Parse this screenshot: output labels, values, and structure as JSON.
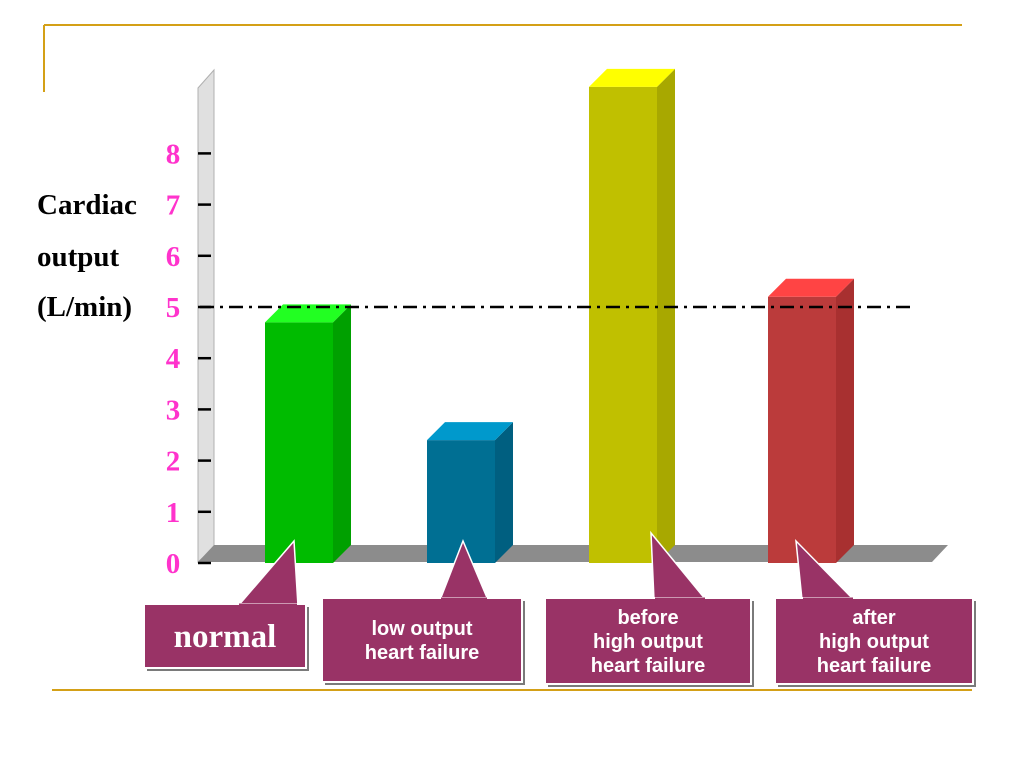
{
  "colors": {
    "accent_rule": "#d4a017",
    "tick_label": "#ff33cc",
    "callout_fill": "#993366",
    "floor": "#8c8c8c",
    "wall": "#e0e0e0",
    "reference_line": "#000000"
  },
  "chart_data": {
    "type": "bar",
    "title": "",
    "ylabel_lines": [
      "Cardiac",
      "output",
      "(L/min)"
    ],
    "yticks": [
      0,
      1,
      2,
      3,
      4,
      5,
      6,
      7,
      8
    ],
    "ylim": [
      0,
      9
    ],
    "grid": false,
    "reference_line": {
      "y": 5,
      "style": "dash-dot"
    },
    "categories": [
      "normal",
      "low output heart failure",
      "before high output heart failure",
      "after high output heart failure"
    ],
    "values": [
      4.7,
      2.4,
      9.3,
      5.2
    ],
    "bar_colors": [
      {
        "front": "#00bb00",
        "side": "#00a000",
        "top": "#22ff22"
      },
      {
        "front": "#006f93",
        "side": "#005f80",
        "top": "#0099cc"
      },
      {
        "front": "#c0c000",
        "side": "#a8a800",
        "top": "#ffff00"
      },
      {
        "front": "#bb3b3b",
        "side": "#a83030",
        "top": "#ff4444"
      }
    ],
    "callouts": [
      {
        "lines": [
          "normal"
        ],
        "style": "serif-large"
      },
      {
        "lines": [
          "low output",
          "heart failure"
        ],
        "style": "sans"
      },
      {
        "lines": [
          "before",
          "high output",
          "heart failure"
        ],
        "style": "sans"
      },
      {
        "lines": [
          "after",
          "high output",
          "heart failure"
        ],
        "style": "sans"
      }
    ]
  }
}
